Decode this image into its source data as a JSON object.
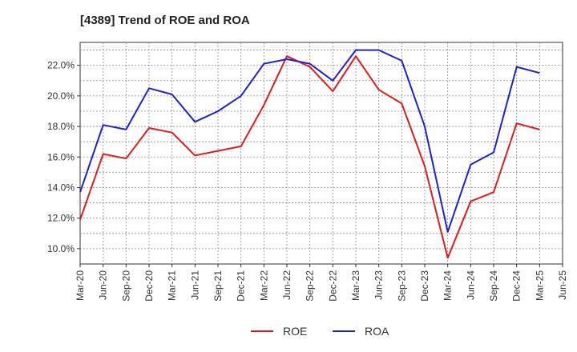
{
  "chart_data": {
    "type": "line",
    "title": "[4389]  Trend of ROE and ROA",
    "x": [
      "Mar-20",
      "Jun-20",
      "Sep-20",
      "Dec-20",
      "Mar-21",
      "Jun-21",
      "Sep-21",
      "Dec-21",
      "Mar-22",
      "Jun-22",
      "Sep-22",
      "Dec-22",
      "Mar-23",
      "Jun-23",
      "Sep-23",
      "Dec-23",
      "Mar-24",
      "Jun-24",
      "Sep-24",
      "Dec-24",
      "Mar-25",
      "Jun-25"
    ],
    "y_ticks": [
      "10.0%",
      "12.0%",
      "14.0%",
      "16.0%",
      "18.0%",
      "20.0%",
      "22.0%"
    ],
    "y_tick_values": [
      10,
      12,
      14,
      16,
      18,
      20,
      22
    ],
    "ylim": [
      9.0,
      23.5
    ],
    "grid": true,
    "legend_position": "bottom",
    "series": [
      {
        "name": "ROE",
        "color": "#e31a1c",
        "values": [
          11.9,
          16.2,
          15.9,
          17.9,
          17.6,
          16.1,
          16.4,
          16.7,
          19.4,
          22.6,
          21.9,
          20.3,
          22.6,
          20.4,
          19.5,
          15.4,
          9.4,
          13.1,
          13.7,
          18.2,
          17.8,
          null
        ]
      },
      {
        "name": "ROA",
        "color": "#1f1fd6",
        "values": [
          13.7,
          18.1,
          17.8,
          20.5,
          20.1,
          18.3,
          19.0,
          20.0,
          22.1,
          22.4,
          22.1,
          21.0,
          23.0,
          23.0,
          22.3,
          18.0,
          11.1,
          15.5,
          16.3,
          21.9,
          21.5,
          null
        ]
      }
    ]
  }
}
